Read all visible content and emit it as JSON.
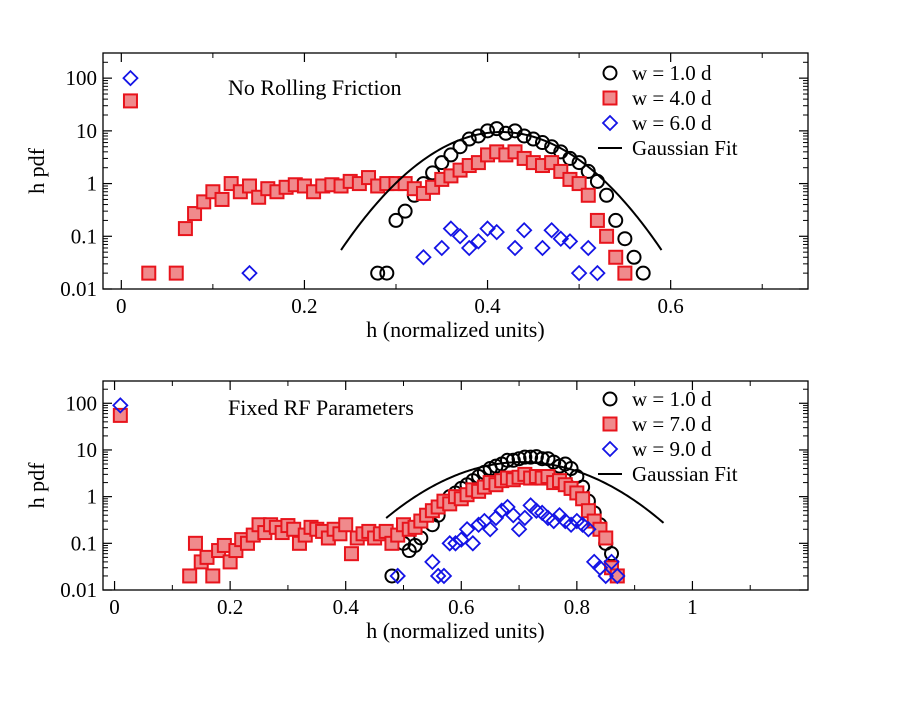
{
  "chart_data": [
    {
      "type": "scatter",
      "title": "No Rolling Friction",
      "xlabel": "h (normalized units)",
      "ylabel": "h pdf",
      "xlim": [
        -0.02,
        0.75
      ],
      "ylim": [
        0.01,
        300
      ],
      "yscale": "log",
      "xticks": [
        0,
        0.2,
        0.4,
        0.6
      ],
      "xtick_labels": [
        "0",
        "0.2",
        "0.4",
        "0.6"
      ],
      "yticks": [
        0.01,
        0.1,
        1,
        10,
        100
      ],
      "ytick_labels": [
        "0.01",
        "0.1",
        "1",
        "10",
        "100"
      ],
      "legend_position": "top-right",
      "series": [
        {
          "name": "w = 1.0 d",
          "marker": "circle",
          "color": "#000000",
          "points": [
            [
              0.28,
              0.02
            ],
            [
              0.29,
              0.02
            ],
            [
              0.3,
              0.2
            ],
            [
              0.31,
              0.3
            ],
            [
              0.32,
              0.6
            ],
            [
              0.33,
              1
            ],
            [
              0.34,
              1.6
            ],
            [
              0.35,
              2.5
            ],
            [
              0.36,
              3.5
            ],
            [
              0.37,
              5
            ],
            [
              0.38,
              7
            ],
            [
              0.39,
              8
            ],
            [
              0.4,
              10
            ],
            [
              0.41,
              11
            ],
            [
              0.42,
              9
            ],
            [
              0.43,
              10
            ],
            [
              0.44,
              8
            ],
            [
              0.45,
              7
            ],
            [
              0.46,
              6
            ],
            [
              0.47,
              5
            ],
            [
              0.48,
              4
            ],
            [
              0.49,
              3
            ],
            [
              0.5,
              2.5
            ],
            [
              0.51,
              1.7
            ],
            [
              0.52,
              1.1
            ],
            [
              0.53,
              0.6
            ],
            [
              0.54,
              0.2
            ],
            [
              0.55,
              0.09
            ],
            [
              0.56,
              0.04
            ],
            [
              0.57,
              0.02
            ]
          ]
        },
        {
          "name": "w = 4.0 d",
          "marker": "square",
          "color": "#e8141c",
          "points": [
            [
              0.01,
              37
            ],
            [
              0.03,
              0.02
            ],
            [
              0.06,
              0.02
            ],
            [
              0.07,
              0.14
            ],
            [
              0.08,
              0.27
            ],
            [
              0.09,
              0.45
            ],
            [
              0.1,
              0.7
            ],
            [
              0.11,
              0.5
            ],
            [
              0.12,
              1.0
            ],
            [
              0.13,
              0.7
            ],
            [
              0.14,
              0.9
            ],
            [
              0.15,
              0.55
            ],
            [
              0.16,
              0.8
            ],
            [
              0.17,
              0.7
            ],
            [
              0.18,
              0.85
            ],
            [
              0.19,
              0.95
            ],
            [
              0.2,
              0.9
            ],
            [
              0.21,
              0.7
            ],
            [
              0.22,
              0.9
            ],
            [
              0.23,
              0.95
            ],
            [
              0.24,
              0.9
            ],
            [
              0.25,
              1.1
            ],
            [
              0.26,
              1.0
            ],
            [
              0.27,
              1.3
            ],
            [
              0.28,
              0.9
            ],
            [
              0.29,
              1.0
            ],
            [
              0.3,
              1.0
            ],
            [
              0.31,
              1.0
            ],
            [
              0.32,
              0.8
            ],
            [
              0.33,
              0.65
            ],
            [
              0.34,
              0.85
            ],
            [
              0.35,
              1.2
            ],
            [
              0.36,
              1.4
            ],
            [
              0.37,
              1.8
            ],
            [
              0.38,
              2.2
            ],
            [
              0.39,
              2.5
            ],
            [
              0.4,
              3.5
            ],
            [
              0.41,
              4
            ],
            [
              0.42,
              3.5
            ],
            [
              0.43,
              4
            ],
            [
              0.44,
              3
            ],
            [
              0.45,
              2.5
            ],
            [
              0.46,
              2.2
            ],
            [
              0.47,
              2.5
            ],
            [
              0.48,
              1.7
            ],
            [
              0.49,
              1.2
            ],
            [
              0.5,
              1.0
            ],
            [
              0.51,
              0.6
            ],
            [
              0.52,
              0.2
            ],
            [
              0.53,
              0.1
            ],
            [
              0.54,
              0.04
            ],
            [
              0.55,
              0.02
            ]
          ]
        },
        {
          "name": "w = 6.0 d",
          "marker": "diamond",
          "color": "#1414e6",
          "points": [
            [
              0.01,
              100
            ],
            [
              0.14,
              0.02
            ],
            [
              0.33,
              0.04
            ],
            [
              0.35,
              0.06
            ],
            [
              0.36,
              0.14
            ],
            [
              0.37,
              0.1
            ],
            [
              0.38,
              0.06
            ],
            [
              0.39,
              0.08
            ],
            [
              0.4,
              0.14
            ],
            [
              0.41,
              0.12
            ],
            [
              0.43,
              0.06
            ],
            [
              0.44,
              0.13
            ],
            [
              0.46,
              0.06
            ],
            [
              0.47,
              0.13
            ],
            [
              0.48,
              0.09
            ],
            [
              0.49,
              0.08
            ],
            [
              0.5,
              0.02
            ],
            [
              0.51,
              0.06
            ],
            [
              0.52,
              0.02
            ]
          ]
        },
        {
          "name": "Gaussian Fit",
          "type": "line",
          "color": "#000000",
          "gaussian": {
            "amplitude": 9.5,
            "mean": 0.415,
            "sigma": 0.0545
          },
          "x_range": [
            0.24,
            0.59
          ]
        }
      ]
    },
    {
      "type": "scatter",
      "title": "Fixed RF Parameters",
      "xlabel": "h (normalized units)",
      "ylabel": "h pdf",
      "xlim": [
        -0.02,
        1.2
      ],
      "ylim": [
        0.01,
        300
      ],
      "yscale": "log",
      "xticks": [
        0,
        0.2,
        0.4,
        0.6,
        0.8,
        1
      ],
      "xtick_labels": [
        "0",
        "0.2",
        "0.4",
        "0.6",
        "0.8",
        "1"
      ],
      "yticks": [
        0.01,
        0.1,
        1,
        10,
        100
      ],
      "ytick_labels": [
        "0.01",
        "0.1",
        "1",
        "10",
        "100"
      ],
      "legend_position": "top-right",
      "series": [
        {
          "name": "w = 1.0 d",
          "marker": "circle",
          "color": "#000000",
          "points": [
            [
              0.48,
              0.02
            ],
            [
              0.5,
              0.1
            ],
            [
              0.51,
              0.07
            ],
            [
              0.52,
              0.09
            ],
            [
              0.53,
              0.13
            ],
            [
              0.55,
              0.25
            ],
            [
              0.56,
              0.4
            ],
            [
              0.57,
              0.7
            ],
            [
              0.58,
              1.0
            ],
            [
              0.59,
              1.2
            ],
            [
              0.6,
              1.5
            ],
            [
              0.61,
              1.8
            ],
            [
              0.62,
              2.2
            ],
            [
              0.63,
              2.7
            ],
            [
              0.64,
              3.3
            ],
            [
              0.65,
              4
            ],
            [
              0.66,
              4.5
            ],
            [
              0.67,
              5
            ],
            [
              0.68,
              6
            ],
            [
              0.69,
              6
            ],
            [
              0.7,
              6.5
            ],
            [
              0.71,
              7
            ],
            [
              0.72,
              7
            ],
            [
              0.73,
              7.2
            ],
            [
              0.74,
              6.5
            ],
            [
              0.75,
              6.5
            ],
            [
              0.76,
              5.5
            ],
            [
              0.77,
              4.5
            ],
            [
              0.78,
              5
            ],
            [
              0.79,
              4
            ],
            [
              0.8,
              2.7
            ],
            [
              0.81,
              1.6
            ],
            [
              0.82,
              0.8
            ],
            [
              0.83,
              0.45
            ],
            [
              0.84,
              0.25
            ],
            [
              0.85,
              0.1
            ],
            [
              0.86,
              0.06
            ],
            [
              0.87,
              0.02
            ]
          ]
        },
        {
          "name": "w = 7.0 d",
          "marker": "square",
          "color": "#e8141c",
          "points": [
            [
              0.01,
              55
            ],
            [
              0.13,
              0.02
            ],
            [
              0.14,
              0.1
            ],
            [
              0.15,
              0.04
            ],
            [
              0.16,
              0.05
            ],
            [
              0.17,
              0.02
            ],
            [
              0.18,
              0.07
            ],
            [
              0.19,
              0.09
            ],
            [
              0.2,
              0.04
            ],
            [
              0.21,
              0.07
            ],
            [
              0.22,
              0.12
            ],
            [
              0.23,
              0.1
            ],
            [
              0.24,
              0.15
            ],
            [
              0.25,
              0.25
            ],
            [
              0.26,
              0.17
            ],
            [
              0.27,
              0.25
            ],
            [
              0.28,
              0.22
            ],
            [
              0.29,
              0.17
            ],
            [
              0.3,
              0.24
            ],
            [
              0.31,
              0.2
            ],
            [
              0.32,
              0.1
            ],
            [
              0.33,
              0.15
            ],
            [
              0.34,
              0.22
            ],
            [
              0.35,
              0.2
            ],
            [
              0.36,
              0.18
            ],
            [
              0.37,
              0.13
            ],
            [
              0.38,
              0.2
            ],
            [
              0.39,
              0.16
            ],
            [
              0.4,
              0.25
            ],
            [
              0.41,
              0.06
            ],
            [
              0.42,
              0.13
            ],
            [
              0.43,
              0.16
            ],
            [
              0.44,
              0.18
            ],
            [
              0.45,
              0.13
            ],
            [
              0.46,
              0.16
            ],
            [
              0.47,
              0.18
            ],
            [
              0.48,
              0.1
            ],
            [
              0.49,
              0.15
            ],
            [
              0.5,
              0.25
            ],
            [
              0.51,
              0.2
            ],
            [
              0.52,
              0.22
            ],
            [
              0.53,
              0.3
            ],
            [
              0.54,
              0.4
            ],
            [
              0.55,
              0.5
            ],
            [
              0.56,
              0.6
            ],
            [
              0.57,
              0.8
            ],
            [
              0.58,
              0.7
            ],
            [
              0.59,
              1.0
            ],
            [
              0.6,
              0.9
            ],
            [
              0.61,
              1.1
            ],
            [
              0.62,
              1.4
            ],
            [
              0.63,
              1.3
            ],
            [
              0.64,
              1.6
            ],
            [
              0.65,
              2
            ],
            [
              0.66,
              1.8
            ],
            [
              0.67,
              2.2
            ],
            [
              0.68,
              2.5
            ],
            [
              0.69,
              2.3
            ],
            [
              0.7,
              2.6
            ],
            [
              0.71,
              3
            ],
            [
              0.72,
              2.5
            ],
            [
              0.73,
              2.7
            ],
            [
              0.74,
              2.5
            ],
            [
              0.75,
              2.7
            ],
            [
              0.76,
              2
            ],
            [
              0.77,
              2.2
            ],
            [
              0.78,
              1.8
            ],
            [
              0.79,
              1.5
            ],
            [
              0.8,
              1.2
            ],
            [
              0.81,
              0.9
            ],
            [
              0.82,
              0.5
            ],
            [
              0.83,
              0.3
            ],
            [
              0.84,
              0.2
            ],
            [
              0.85,
              0.13
            ],
            [
              0.86,
              0.03
            ],
            [
              0.87,
              0.02
            ]
          ]
        },
        {
          "name": "w = 9.0 d",
          "marker": "diamond",
          "color": "#1414e6",
          "points": [
            [
              0.01,
              90
            ],
            [
              0.49,
              0.02
            ],
            [
              0.55,
              0.04
            ],
            [
              0.56,
              0.02
            ],
            [
              0.57,
              0.02
            ],
            [
              0.58,
              0.1
            ],
            [
              0.59,
              0.1
            ],
            [
              0.6,
              0.12
            ],
            [
              0.61,
              0.2
            ],
            [
              0.62,
              0.1
            ],
            [
              0.63,
              0.25
            ],
            [
              0.64,
              0.3
            ],
            [
              0.65,
              0.2
            ],
            [
              0.66,
              0.35
            ],
            [
              0.67,
              0.5
            ],
            [
              0.68,
              0.6
            ],
            [
              0.69,
              0.4
            ],
            [
              0.7,
              0.2
            ],
            [
              0.71,
              0.35
            ],
            [
              0.72,
              0.65
            ],
            [
              0.73,
              0.5
            ],
            [
              0.74,
              0.45
            ],
            [
              0.75,
              0.35
            ],
            [
              0.76,
              0.3
            ],
            [
              0.77,
              0.4
            ],
            [
              0.78,
              0.3
            ],
            [
              0.79,
              0.25
            ],
            [
              0.8,
              0.3
            ],
            [
              0.81,
              0.25
            ],
            [
              0.82,
              0.2
            ],
            [
              0.83,
              0.04
            ],
            [
              0.84,
              0.03
            ],
            [
              0.85,
              0.02
            ],
            [
              0.86,
              0.04
            ],
            [
              0.87,
              0.02
            ]
          ]
        },
        {
          "name": "Gaussian Fit",
          "type": "line",
          "color": "#000000",
          "gaussian": {
            "amplitude": 5.5,
            "mean": 0.705,
            "sigma": 0.1
          },
          "x_range": [
            0.47,
            0.95
          ]
        }
      ]
    }
  ]
}
